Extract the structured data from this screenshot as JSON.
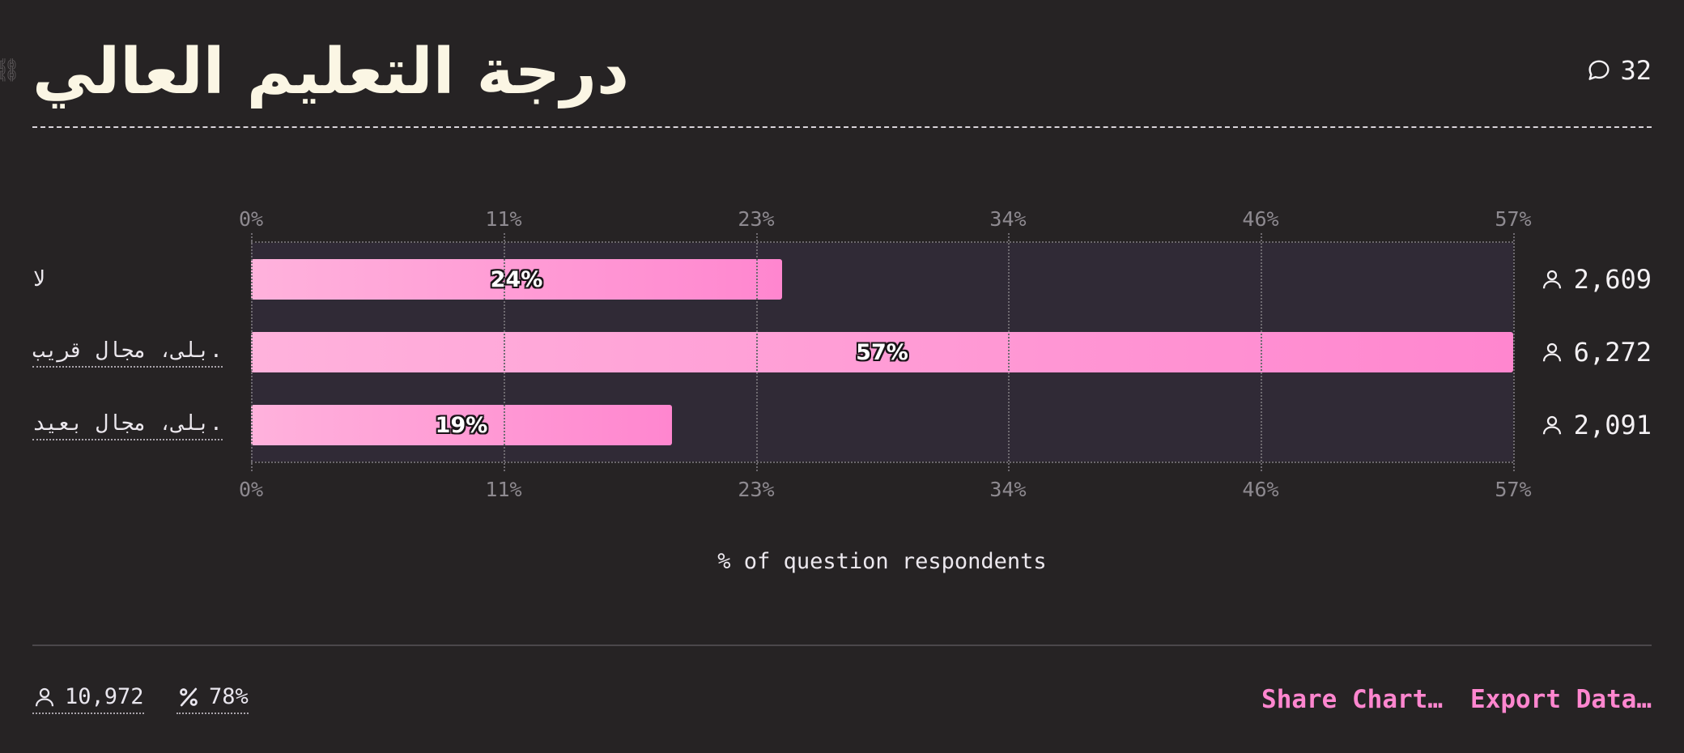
{
  "title": "درجة التعليم العالي",
  "comments": {
    "count": "32",
    "icon": "speech-bubble-icon"
  },
  "axis": {
    "ticks": [
      "0%",
      "11%",
      "23%",
      "34%",
      "46%",
      "57%"
    ],
    "xlabel": "% of question respondents"
  },
  "rows": [
    {
      "label": "لا",
      "value_label": "24%",
      "count": "2,609"
    },
    {
      "label": "بلى، مجال قريب.",
      "value_label": "57%",
      "count": "6,272"
    },
    {
      "label": "بلى، مجال بعيد.",
      "value_label": "19%",
      "count": "2,091"
    }
  ],
  "footer": {
    "respondents": "10,972",
    "response_rate": "78%",
    "share_label": "Share Chart…",
    "export_label": "Export Data…"
  },
  "colors": {
    "bar_start": "#ffb2dc",
    "bar_end": "#ff86cf",
    "accent": "#ff86cf",
    "background": "#262324"
  },
  "chart_data": {
    "type": "bar",
    "orientation": "horizontal",
    "title": "درجة التعليم العالي",
    "categories": [
      "لا",
      "بلى، مجال قريب.",
      "بلى، مجال بعيد."
    ],
    "values": [
      24,
      57,
      19
    ],
    "counts": [
      2609,
      6272,
      2091
    ],
    "xlabel": "% of question respondents",
    "ylabel": "",
    "xlim": [
      0,
      57
    ],
    "ticks": [
      "0%",
      "11%",
      "23%",
      "34%",
      "46%",
      "57%"
    ],
    "grid": true,
    "legend": "none"
  }
}
